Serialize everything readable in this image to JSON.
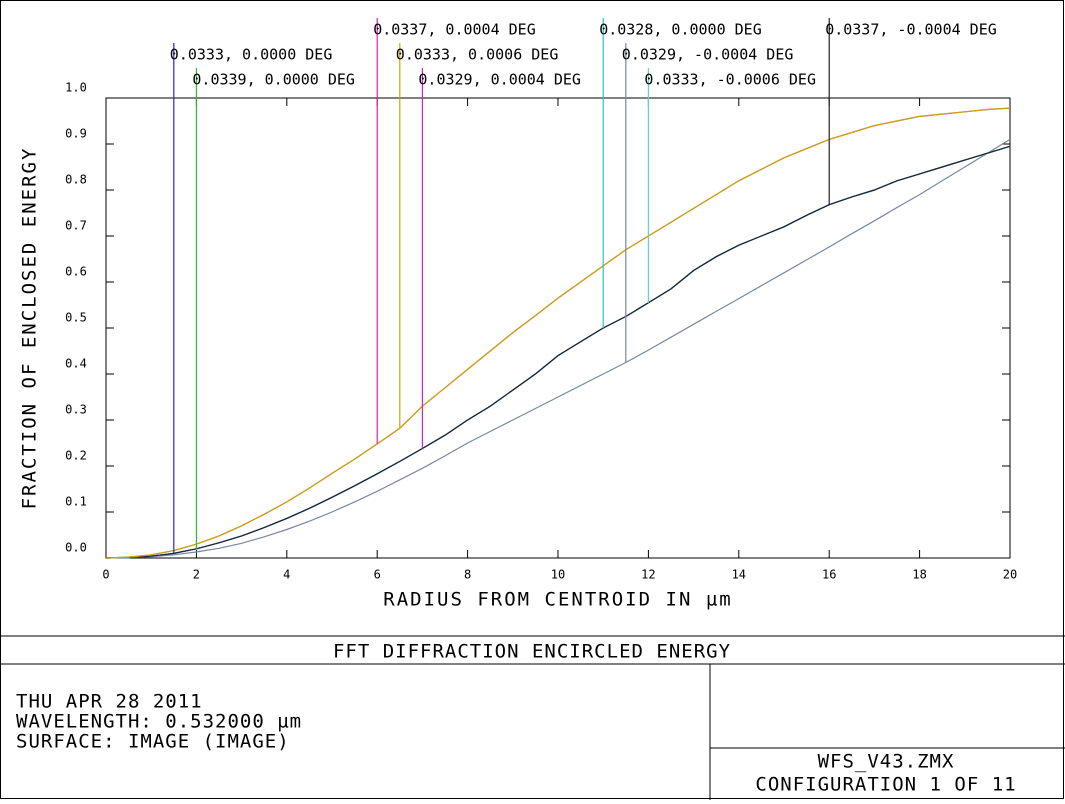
{
  "chart_data": {
    "type": "line",
    "title": "FFT DIFFRACTION ENCIRCLED ENERGY",
    "x_label": "RADIUS FROM CENTROID IN µm",
    "y_label": "FRACTION OF ENCLOSED ENERGY",
    "x": [
      0,
      0.5,
      1,
      1.5,
      2,
      2.5,
      3,
      3.5,
      4,
      4.5,
      5,
      5.5,
      6,
      6.5,
      7,
      7.5,
      8,
      8.5,
      9,
      9.5,
      10,
      10.5,
      11,
      11.5,
      12,
      12.5,
      13,
      13.5,
      14,
      14.5,
      15,
      15.5,
      16,
      16.5,
      17,
      17.5,
      18,
      18.5,
      19,
      19.5,
      20
    ],
    "series": [
      {
        "name": "0.0333, 0.0000 DEG",
        "color": "#2828c8",
        "values": [
          0,
          0.001,
          0.004,
          0.01,
          0.02,
          0.033,
          0.048,
          0.066,
          0.086,
          0.108,
          0.132,
          0.157,
          0.183,
          0.21,
          0.238,
          0.267,
          0.3,
          0.33,
          0.365,
          0.4,
          0.44,
          0.47,
          0.5,
          0.525,
          0.555,
          0.585,
          0.625,
          0.655,
          0.68,
          0.7,
          0.72,
          0.745,
          0.768,
          0.785,
          0.8,
          0.82,
          0.835,
          0.85,
          0.865,
          0.88,
          0.895
        ]
      },
      {
        "name": "0.0339, 0.0000 DEG",
        "color": "#28c028",
        "values": [
          0,
          0.001,
          0.004,
          0.01,
          0.02,
          0.033,
          0.048,
          0.066,
          0.086,
          0.108,
          0.132,
          0.157,
          0.183,
          0.21,
          0.238,
          0.267,
          0.3,
          0.33,
          0.365,
          0.4,
          0.44,
          0.47,
          0.5,
          0.525,
          0.555,
          0.585,
          0.625,
          0.655,
          0.68,
          0.7,
          0.72,
          0.745,
          0.768,
          0.785,
          0.8,
          0.82,
          0.835,
          0.85,
          0.865,
          0.88,
          0.895
        ]
      },
      {
        "name": "0.0337, 0.0004 DEG",
        "color": "#e020a8",
        "values": [
          0,
          0.002,
          0.007,
          0.016,
          0.03,
          0.048,
          0.07,
          0.095,
          0.122,
          0.152,
          0.184,
          0.215,
          0.248,
          0.282,
          0.33,
          0.37,
          0.41,
          0.45,
          0.49,
          0.527,
          0.565,
          0.6,
          0.635,
          0.67,
          0.7,
          0.73,
          0.76,
          0.79,
          0.82,
          0.845,
          0.87,
          0.89,
          0.91,
          0.925,
          0.94,
          0.95,
          0.96,
          0.965,
          0.97,
          0.975,
          0.978
        ]
      },
      {
        "name": "0.0333, 0.0006 DEG",
        "color": "#c8a800",
        "values": [
          0,
          0.002,
          0.007,
          0.016,
          0.03,
          0.048,
          0.07,
          0.095,
          0.122,
          0.152,
          0.184,
          0.215,
          0.248,
          0.282,
          0.33,
          0.37,
          0.41,
          0.45,
          0.49,
          0.527,
          0.565,
          0.6,
          0.635,
          0.67,
          0.7,
          0.73,
          0.76,
          0.79,
          0.82,
          0.845,
          0.87,
          0.89,
          0.91,
          0.925,
          0.94,
          0.95,
          0.96,
          0.965,
          0.97,
          0.975,
          0.978
        ]
      },
      {
        "name": "0.0329, 0.0004 DEG",
        "color": "#d020d0",
        "values": [
          0,
          0.001,
          0.004,
          0.01,
          0.02,
          0.033,
          0.048,
          0.066,
          0.086,
          0.108,
          0.132,
          0.157,
          0.183,
          0.21,
          0.238,
          0.267,
          0.3,
          0.33,
          0.365,
          0.4,
          0.44,
          0.47,
          0.5,
          0.525,
          0.555,
          0.585,
          0.625,
          0.655,
          0.68,
          0.7,
          0.72,
          0.745,
          0.768,
          0.785,
          0.8,
          0.82,
          0.835,
          0.85,
          0.865,
          0.88,
          0.895
        ]
      },
      {
        "name": "0.0328, 0.0000 DEG",
        "color": "#20c8c8",
        "values": [
          0,
          0.001,
          0.004,
          0.01,
          0.02,
          0.033,
          0.048,
          0.066,
          0.086,
          0.108,
          0.132,
          0.157,
          0.183,
          0.21,
          0.238,
          0.267,
          0.3,
          0.33,
          0.365,
          0.4,
          0.44,
          0.47,
          0.5,
          0.525,
          0.555,
          0.585,
          0.625,
          0.655,
          0.68,
          0.7,
          0.72,
          0.745,
          0.768,
          0.785,
          0.8,
          0.82,
          0.835,
          0.85,
          0.865,
          0.88,
          0.895
        ]
      },
      {
        "name": "0.0329, -0.0004 DEG",
        "color": "#7888a0",
        "values": [
          0,
          0.001,
          0.003,
          0.007,
          0.013,
          0.021,
          0.032,
          0.046,
          0.062,
          0.08,
          0.1,
          0.122,
          0.145,
          0.17,
          0.195,
          0.222,
          0.25,
          0.275,
          0.3,
          0.325,
          0.35,
          0.375,
          0.4,
          0.425,
          0.452,
          0.48,
          0.508,
          0.536,
          0.564,
          0.592,
          0.62,
          0.648,
          0.676,
          0.705,
          0.733,
          0.762,
          0.79,
          0.82,
          0.85,
          0.88,
          0.91
        ]
      },
      {
        "name": "0.0333, -0.0006 DEG",
        "color": "#60d8c0",
        "values": [
          0,
          0.001,
          0.004,
          0.01,
          0.02,
          0.033,
          0.048,
          0.066,
          0.086,
          0.108,
          0.132,
          0.157,
          0.183,
          0.21,
          0.238,
          0.267,
          0.3,
          0.33,
          0.365,
          0.4,
          0.44,
          0.47,
          0.5,
          0.525,
          0.555,
          0.585,
          0.625,
          0.655,
          0.68,
          0.7,
          0.72,
          0.745,
          0.768,
          0.785,
          0.8,
          0.82,
          0.835,
          0.85,
          0.865,
          0.88,
          0.895
        ]
      },
      {
        "name": "0.0337, -0.0004 DEG",
        "color": "#202030",
        "values": [
          0,
          0.001,
          0.004,
          0.01,
          0.02,
          0.033,
          0.048,
          0.066,
          0.086,
          0.108,
          0.132,
          0.157,
          0.183,
          0.21,
          0.238,
          0.267,
          0.3,
          0.33,
          0.365,
          0.4,
          0.44,
          0.47,
          0.5,
          0.525,
          0.555,
          0.585,
          0.625,
          0.655,
          0.68,
          0.7,
          0.72,
          0.745,
          0.768,
          0.785,
          0.8,
          0.82,
          0.835,
          0.85,
          0.865,
          0.88,
          0.895
        ]
      }
    ],
    "xlim": [
      0,
      20
    ],
    "xticks": [
      0,
      2,
      4,
      6,
      8,
      10,
      12,
      14,
      16,
      18,
      20
    ],
    "ylim": [
      0,
      1
    ],
    "yticks": [
      {
        "value": 0,
        "label": "0.0"
      },
      0.1,
      0.2,
      0.3,
      0.4,
      0.5,
      0.6,
      0.7,
      0.8,
      0.9,
      {
        "value": 1,
        "label": "1.0"
      }
    ]
  },
  "footer": {
    "lines": [
      "THU APR 28 2011",
      "WAVELENGTH: 0.532000 µm",
      "SURFACE: IMAGE (IMAGE)"
    ],
    "file": "WFS_V43.ZMX",
    "config": "CONFIGURATION 1 OF 11"
  }
}
